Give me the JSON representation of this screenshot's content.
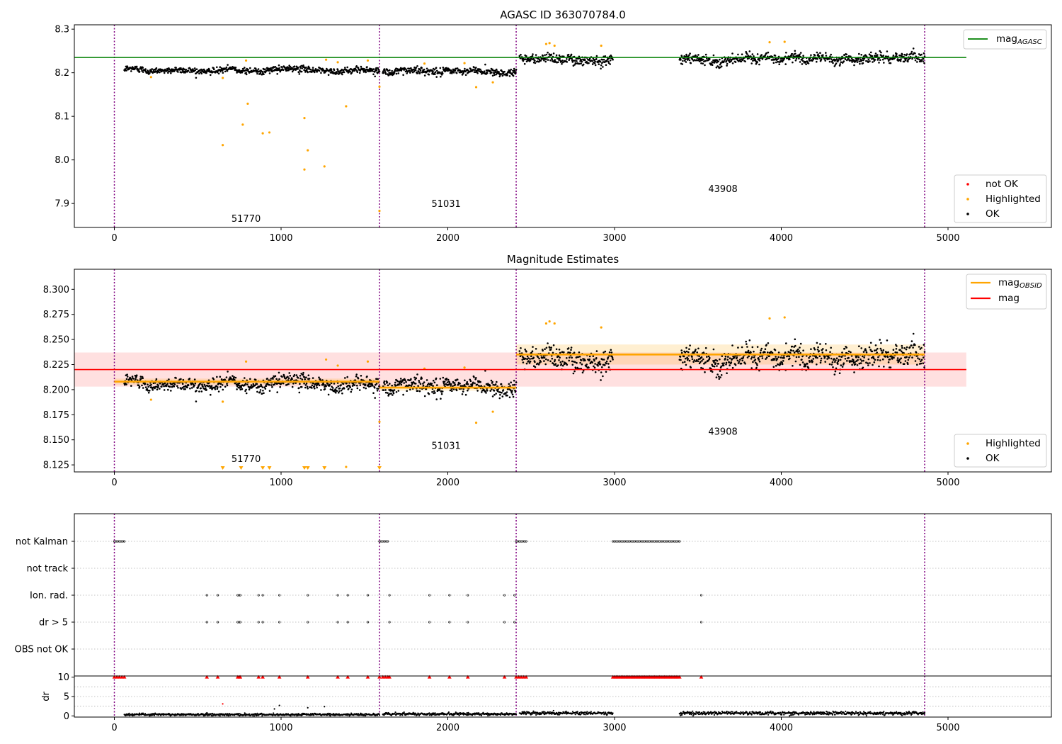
{
  "colors": {
    "ok": "#000000",
    "highlighted": "#ffa500",
    "not_ok": "#ff0000",
    "mag_agasc": "#008000",
    "mag_obsid": "#ffa500",
    "mag": "#ff0000",
    "obs_boundary": "#800080"
  },
  "chart_data": [
    {
      "type": "scatter",
      "title": "AGASC ID 363070784.0",
      "xlim": [
        -240,
        5620
      ],
      "ylim": [
        7.845,
        8.31
      ],
      "xticks": [
        0,
        1000,
        2000,
        3000,
        4000,
        5000
      ],
      "yticks": [
        7.9,
        8.0,
        8.1,
        8.2,
        8.3
      ],
      "legend_lines": [
        {
          "label": "mag",
          "sub": "AGASC",
          "color": "#008000"
        }
      ],
      "legend_points": [
        {
          "label": "not OK",
          "color": "#ff0000"
        },
        {
          "label": "Highlighted",
          "color": "#ffa500"
        },
        {
          "label": "OK",
          "color": "#000000"
        }
      ],
      "hlines": [
        {
          "y": 8.235,
          "x0": -240,
          "x1": 5110,
          "color": "#008000"
        }
      ],
      "observation_boundaries": [
        0,
        1590,
        2410,
        4860
      ],
      "observation_labels": [
        {
          "text": "51770",
          "x": 790,
          "y": 7.858
        },
        {
          "text": "51031",
          "x": 1990,
          "y": 7.892
        },
        {
          "text": "43908",
          "x": 3650,
          "y": 7.926
        }
      ],
      "segments": [
        {
          "x": [
            60,
            1590
          ],
          "mean": 8.207,
          "noise": 0.005
        },
        {
          "x": [
            1610,
            2410
          ],
          "mean": 8.202,
          "noise": 0.006
        },
        {
          "x": [
            2430,
            2990
          ],
          "mean": 8.237,
          "noise": 0.008
        },
        {
          "x": [
            3390,
            4860
          ],
          "mean": 8.233,
          "noise": 0.008
        }
      ],
      "highlighted_points": [
        [
          220,
          8.19
        ],
        [
          650,
          8.188
        ],
        [
          650,
          8.034
        ],
        [
          770,
          8.081
        ],
        [
          790,
          8.228
        ],
        [
          800,
          8.129
        ],
        [
          890,
          8.061
        ],
        [
          930,
          8.063
        ],
        [
          1140,
          7.978
        ],
        [
          1140,
          8.096
        ],
        [
          1160,
          8.022
        ],
        [
          1260,
          7.985
        ],
        [
          1270,
          8.23
        ],
        [
          1340,
          8.224
        ],
        [
          1390,
          8.123
        ],
        [
          1520,
          8.228
        ],
        [
          1590,
          8.168
        ],
        [
          1590,
          7.883
        ],
        [
          1860,
          8.221
        ],
        [
          2100,
          8.222
        ],
        [
          2170,
          8.167
        ],
        [
          2270,
          8.178
        ],
        [
          2590,
          8.266
        ],
        [
          2610,
          8.268
        ],
        [
          2640,
          8.262
        ],
        [
          2920,
          8.262
        ],
        [
          3930,
          8.27
        ],
        [
          4020,
          8.271
        ]
      ]
    },
    {
      "type": "scatter",
      "title": "Magnitude Estimates",
      "xlim": [
        -240,
        5620
      ],
      "ylim": [
        8.118,
        8.32
      ],
      "xticks": [
        0,
        1000,
        2000,
        3000,
        4000,
        5000
      ],
      "yticks": [
        8.125,
        8.15,
        8.175,
        8.2,
        8.225,
        8.25,
        8.275,
        8.3
      ],
      "legend_lines": [
        {
          "label": "mag",
          "sub": "OBSID",
          "color": "#ffa500"
        },
        {
          "label": "mag",
          "sub": "",
          "color": "#ff0000"
        }
      ],
      "legend_points": [
        {
          "label": "Highlighted",
          "color": "#ffa500"
        },
        {
          "label": "OK",
          "color": "#000000"
        }
      ],
      "mag": {
        "value": 8.22,
        "band": [
          8.203,
          8.237
        ],
        "x0": -240,
        "x1": 5110
      },
      "obsid_mags": [
        {
          "x0": 0,
          "x1": 1590,
          "value": 8.208,
          "band": [
            8.205,
            8.211
          ]
        },
        {
          "x0": 1590,
          "x1": 2410,
          "value": 8.202,
          "band": [
            8.199,
            8.205
          ]
        },
        {
          "x0": 2410,
          "x1": 4860,
          "value": 8.235,
          "band": [
            8.225,
            8.245
          ]
        }
      ],
      "observation_boundaries": [
        0,
        1590,
        2410,
        4860
      ],
      "observation_labels": [
        {
          "text": "51770",
          "x": 790,
          "y": 8.128
        },
        {
          "text": "51031",
          "x": 1990,
          "y": 8.141
        },
        {
          "text": "43908",
          "x": 3650,
          "y": 8.155
        }
      ],
      "segments": [
        {
          "x": [
            60,
            1590
          ],
          "mean": 8.207,
          "noise": 0.005
        },
        {
          "x": [
            1610,
            2410
          ],
          "mean": 8.202,
          "noise": 0.006
        },
        {
          "x": [
            2430,
            2990
          ],
          "mean": 8.237,
          "noise": 0.008
        },
        {
          "x": [
            3390,
            4860
          ],
          "mean": 8.233,
          "noise": 0.008
        }
      ],
      "highlighted_points": [
        [
          220,
          8.19
        ],
        [
          650,
          8.188
        ],
        [
          790,
          8.228
        ],
        [
          1270,
          8.23
        ],
        [
          1340,
          8.224
        ],
        [
          1390,
          8.123
        ],
        [
          1520,
          8.228
        ],
        [
          1590,
          8.168
        ],
        [
          1860,
          8.221
        ],
        [
          2100,
          8.222
        ],
        [
          2170,
          8.167
        ],
        [
          2270,
          8.178
        ],
        [
          2590,
          8.266
        ],
        [
          2610,
          8.268
        ],
        [
          2640,
          8.266
        ],
        [
          2920,
          8.262
        ],
        [
          3930,
          8.271
        ],
        [
          4020,
          8.272
        ]
      ],
      "off_scale_markers_x": [
        650,
        760,
        890,
        930,
        1140,
        1160,
        1260,
        1590
      ]
    },
    {
      "type": "scatter",
      "title": "",
      "xlim": [
        -240,
        5620
      ],
      "categories": [
        "not Kalman",
        "not track",
        "Ion. rad.",
        "dr > 5",
        "OBS not OK"
      ],
      "observation_boundaries": [
        0,
        1590,
        2410,
        4860
      ],
      "flag_ranges": {
        "not Kalman": [
          [
            0,
            60
          ],
          [
            1590,
            1640
          ],
          [
            2410,
            2470
          ],
          [
            2990,
            3390
          ]
        ],
        "not track": [],
        "Ion. rad.": [],
        "dr > 5": [],
        "OBS not OK": []
      },
      "flag_points": {
        "Ion. rad.": [
          555,
          620,
          740,
          750,
          755,
          865,
          890,
          990,
          1160,
          1340,
          1400,
          1520,
          1650,
          1890,
          2010,
          2120,
          2340,
          2400,
          3520
        ],
        "dr > 5": [
          555,
          620,
          740,
          750,
          755,
          865,
          890,
          990,
          1160,
          1340,
          1400,
          1520,
          1650,
          1890,
          2010,
          2120,
          2340,
          2400,
          3520
        ]
      }
    },
    {
      "type": "scatter",
      "title": "",
      "ylabel": "dr",
      "xlim": [
        -240,
        5620
      ],
      "ylim": [
        -0.3,
        10.3
      ],
      "xticks": [
        0,
        1000,
        2000,
        3000,
        4000,
        5000
      ],
      "yticks": [
        0,
        5,
        10
      ],
      "observation_boundaries": [
        0,
        1590,
        2410,
        4860
      ],
      "clipped_value": 10,
      "clipped_x": [
        0,
        15,
        30,
        45,
        60,
        555,
        620,
        740,
        750,
        755,
        865,
        890,
        990,
        1160,
        1340,
        1400,
        1520,
        1590,
        1610,
        1625,
        1640,
        1650,
        1890,
        2010,
        2120,
        2340,
        2410,
        2425,
        2440,
        2455,
        2470
      ],
      "clipped_range": [
        2990,
        3390
      ],
      "clipped_point_after": 3520,
      "dr_outliers": [
        [
          650,
          3.1
        ],
        [
          990,
          2.7
        ],
        [
          960,
          1.8
        ],
        [
          1160,
          2.1
        ],
        [
          1260,
          2.4
        ]
      ],
      "dr_segments": [
        {
          "x": [
            60,
            1590
          ],
          "mean": 0.35,
          "noise": 0.25
        },
        {
          "x": [
            1610,
            2410
          ],
          "mean": 0.5,
          "noise": 0.3
        },
        {
          "x": [
            2430,
            2990
          ],
          "mean": 0.7,
          "noise": 0.35
        },
        {
          "x": [
            3390,
            4860
          ],
          "mean": 0.7,
          "noise": 0.35
        }
      ]
    }
  ]
}
